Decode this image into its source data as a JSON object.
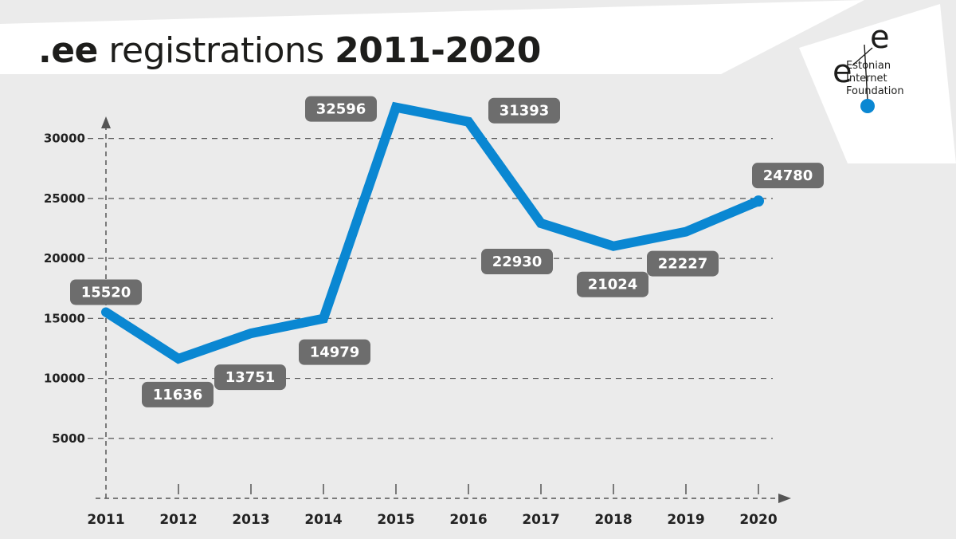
{
  "header": {
    "title_part1": ".ee",
    "title_part2": " registrations ",
    "title_part3": "2011-2020"
  },
  "logo": {
    "glyph": "e",
    "lines": [
      "Estonian",
      "Internet",
      "Foundation"
    ],
    "accent": "#0a87d2"
  },
  "colors": {
    "line": "#0a87d2",
    "label_bg": "#6d6d6d",
    "grid": "#555555",
    "background": "#ebebeb",
    "banner": "#ffffff"
  },
  "chart_data": {
    "type": "line",
    "x": [
      "2011",
      "2012",
      "2013",
      "2014",
      "2015",
      "2016",
      "2017",
      "2018",
      "2019",
      "2020"
    ],
    "series": [
      {
        "values": [
          15520,
          11636,
          13751,
          14979,
          32596,
          31393,
          22930,
          21024,
          22227,
          24780
        ]
      }
    ],
    "y_ticks": [
      5000,
      10000,
      15000,
      20000,
      25000,
      30000
    ],
    "ylim": [
      0,
      32596
    ],
    "grid": true,
    "data_labels": [
      "15520",
      "11636",
      "13751",
      "14979",
      "32596",
      "31393",
      "22930",
      "21024",
      "22227",
      "24780"
    ]
  }
}
